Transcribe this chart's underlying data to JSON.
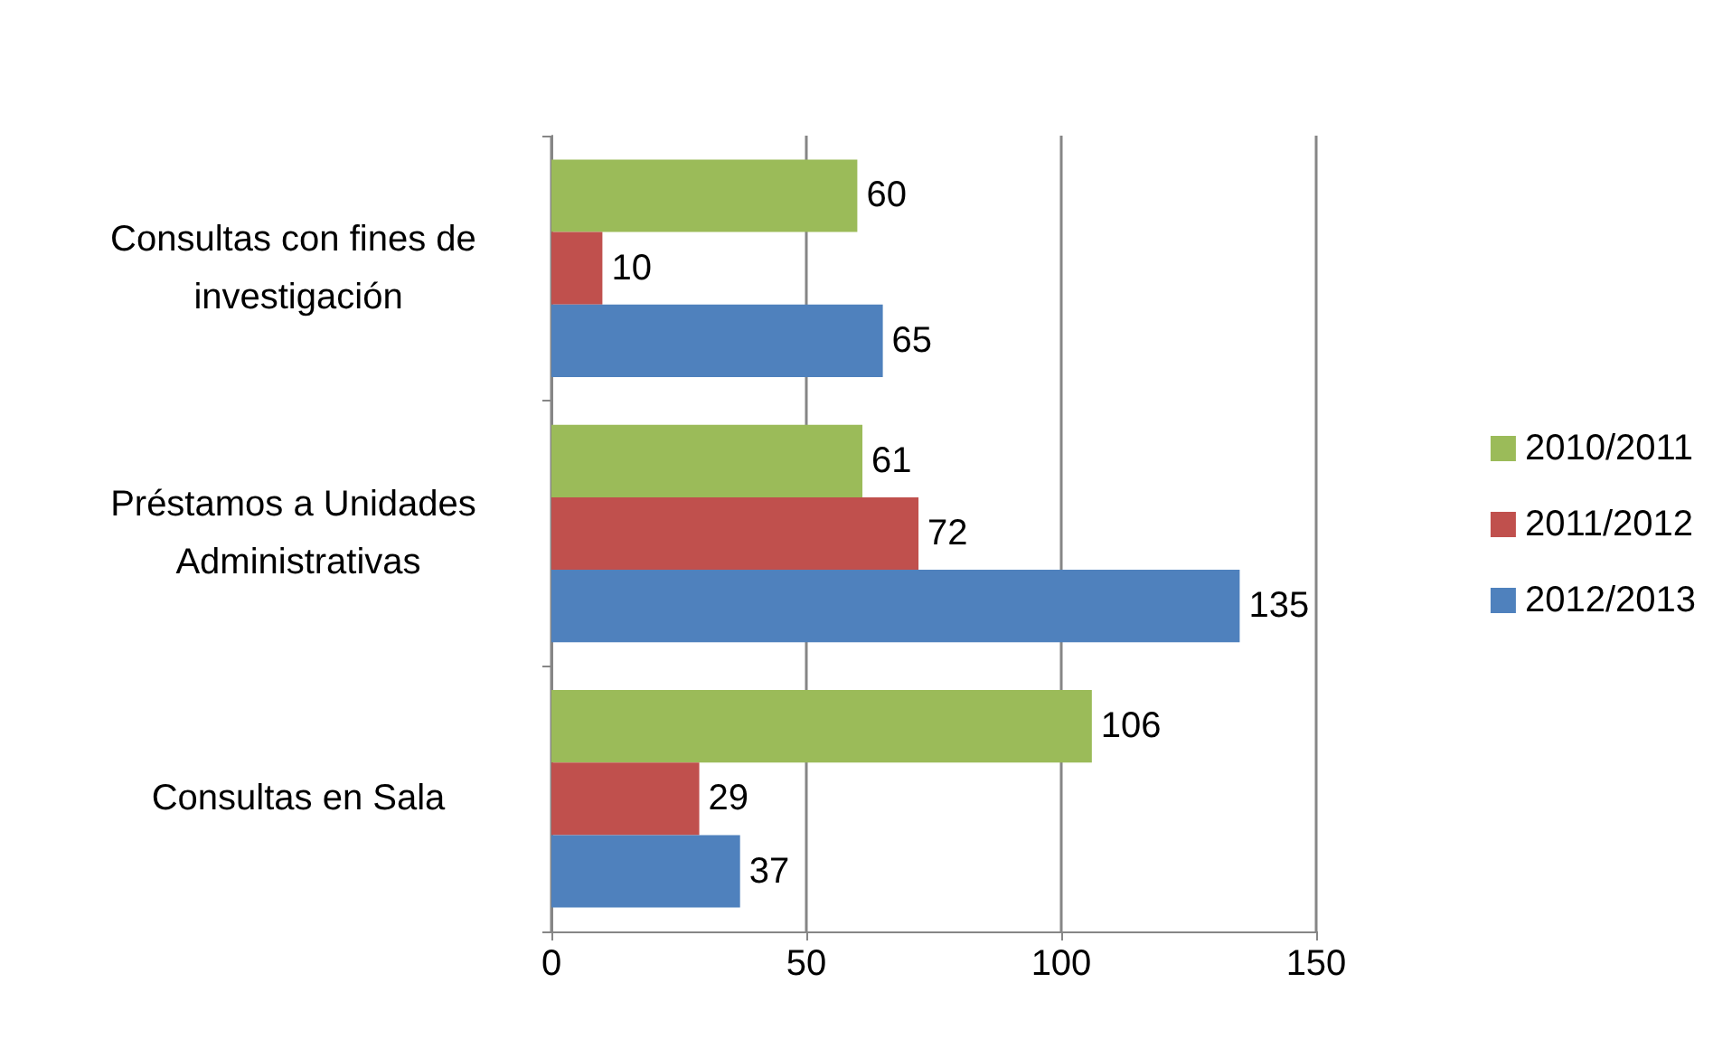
{
  "chart_data": {
    "type": "bar",
    "orientation": "horizontal",
    "categories": [
      "Consultas con fines de investigación",
      "Préstamos a Unidades Administrativas",
      "Consultas en Sala"
    ],
    "series": [
      {
        "name": "2010/2011",
        "color": "#9bbb59",
        "values": [
          60,
          61,
          106
        ]
      },
      {
        "name": "2011/2012",
        "color": "#c0504d",
        "values": [
          10,
          72,
          29
        ]
      },
      {
        "name": "2012/2013",
        "color": "#4f81bd",
        "values": [
          65,
          135,
          37
        ]
      }
    ],
    "xlim": [
      0,
      150
    ],
    "xticks": [
      0,
      50,
      100,
      150
    ],
    "grid": "x",
    "legend": "right",
    "data_labels": true
  }
}
